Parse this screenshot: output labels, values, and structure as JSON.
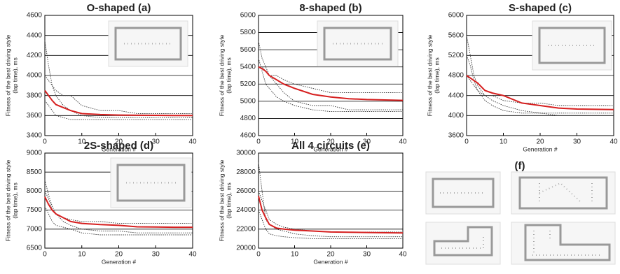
{
  "chart_data": [
    {
      "type": "line",
      "title": "O-shaped (a)",
      "ylabel": [
        "Fitness of the best driving style",
        "(lap time), ms"
      ],
      "xlabel": "Generation #",
      "x": [
        0,
        1,
        2,
        3,
        5,
        7,
        10,
        15,
        20,
        25,
        30,
        35,
        40
      ],
      "xlim": [
        0,
        40
      ],
      "xticks": [
        0,
        10,
        20,
        30,
        40
      ],
      "ylim": [
        3400,
        4600
      ],
      "yticks": [
        3400,
        3600,
        3800,
        4000,
        4200,
        4400,
        4600
      ],
      "grid": true,
      "series": [
        {
          "color": "#333333",
          "style": "dotted",
          "values": [
            4350,
            4100,
            3900,
            3800,
            3700,
            3650,
            3600,
            3580,
            3580,
            3580,
            3580,
            3580,
            3580
          ]
        },
        {
          "color": "#333333",
          "style": "dotted",
          "values": [
            4000,
            3950,
            3900,
            3850,
            3800,
            3800,
            3700,
            3650,
            3650,
            3620,
            3620,
            3620,
            3620
          ]
        },
        {
          "color": "#333333",
          "style": "dotted",
          "values": [
            3750,
            3700,
            3650,
            3600,
            3580,
            3560,
            3560,
            3560,
            3560,
            3560,
            3560,
            3560,
            3560
          ]
        },
        {
          "color": "#d62020",
          "style": "solid",
          "values": [
            3850,
            3800,
            3750,
            3710,
            3680,
            3650,
            3620,
            3610,
            3605,
            3603,
            3602,
            3601,
            3600
          ]
        }
      ]
    },
    {
      "type": "line",
      "title": "8-shaped (b)",
      "ylabel": [
        "Fitness of the best driving style",
        "(lap time), ms"
      ],
      "xlabel": "Generation #",
      "x": [
        0,
        1,
        2,
        3,
        5,
        7,
        10,
        15,
        20,
        25,
        30,
        35,
        40
      ],
      "xlim": [
        0,
        40
      ],
      "xticks": [
        0,
        10,
        20,
        30,
        40
      ],
      "ylim": [
        4600,
        6000
      ],
      "yticks": [
        4600,
        4800,
        5000,
        5200,
        5400,
        5600,
        5800,
        6000
      ],
      "grid": true,
      "series": [
        {
          "color": "#333333",
          "style": "dotted",
          "values": [
            5700,
            5500,
            5400,
            5300,
            5200,
            5100,
            5000,
            4950,
            4950,
            4900,
            4900,
            4900,
            4900
          ]
        },
        {
          "color": "#333333",
          "style": "dotted",
          "values": [
            5400,
            5400,
            5350,
            5300,
            5300,
            5250,
            5200,
            5150,
            5100,
            5100,
            5100,
            5100,
            5100
          ]
        },
        {
          "color": "#333333",
          "style": "dotted",
          "values": [
            5500,
            5350,
            5200,
            5150,
            5050,
            5000,
            4950,
            4900,
            4880,
            4880,
            4880,
            4880,
            4880
          ]
        },
        {
          "color": "#d62020",
          "style": "solid",
          "values": [
            5400,
            5380,
            5350,
            5300,
            5250,
            5200,
            5150,
            5080,
            5050,
            5030,
            5020,
            5015,
            5010
          ]
        }
      ]
    },
    {
      "type": "line",
      "title": "S-shaped (c)",
      "ylabel": [
        "Fitness of the best driving style",
        "(lap time), ms"
      ],
      "xlabel": "Generation #",
      "x": [
        0,
        1,
        2,
        3,
        5,
        7,
        10,
        15,
        20,
        25,
        30,
        35,
        40
      ],
      "xlim": [
        0,
        40
      ],
      "xticks": [
        0,
        10,
        20,
        30,
        40
      ],
      "ylim": [
        3600,
        6000
      ],
      "yticks": [
        3600,
        4000,
        4400,
        4800,
        5200,
        5600,
        6000
      ],
      "grid": true,
      "series": [
        {
          "color": "#333333",
          "style": "dotted",
          "values": [
            5600,
            5200,
            4800,
            4600,
            4400,
            4300,
            4200,
            4100,
            4050,
            4000,
            4000,
            4000,
            4000
          ]
        },
        {
          "color": "#333333",
          "style": "dotted",
          "values": [
            4800,
            4700,
            4600,
            4500,
            4400,
            4400,
            4300,
            4250,
            4250,
            4200,
            4200,
            4200,
            4200
          ]
        },
        {
          "color": "#333333",
          "style": "dotted",
          "values": [
            5200,
            5000,
            4700,
            4500,
            4300,
            4200,
            4100,
            4050,
            4050,
            4050,
            4050,
            4050,
            4050
          ]
        },
        {
          "color": "#d62020",
          "style": "solid",
          "values": [
            4800,
            4750,
            4700,
            4650,
            4500,
            4450,
            4400,
            4250,
            4200,
            4150,
            4130,
            4125,
            4120
          ]
        }
      ]
    },
    {
      "type": "line",
      "title": "2S-shaped (d)",
      "ylabel": [
        "Fitness of the best driving style",
        "(lap time), ms"
      ],
      "xlabel": "Generation #",
      "x": [
        0,
        1,
        2,
        3,
        5,
        7,
        10,
        15,
        20,
        25,
        30,
        35,
        40
      ],
      "xlim": [
        0,
        40
      ],
      "xticks": [
        0,
        10,
        20,
        30,
        40
      ],
      "ylim": [
        6500,
        9000
      ],
      "yticks": [
        6500,
        7000,
        7500,
        8000,
        8500,
        9000
      ],
      "grid": true,
      "series": [
        {
          "color": "#333333",
          "style": "dotted",
          "values": [
            8300,
            7900,
            7600,
            7400,
            7200,
            7100,
            7000,
            6950,
            6950,
            6900,
            6900,
            6900,
            6900
          ]
        },
        {
          "color": "#333333",
          "style": "dotted",
          "values": [
            8000,
            7800,
            7500,
            7400,
            7300,
            7250,
            7200,
            7200,
            7150,
            7150,
            7150,
            7150,
            7150
          ]
        },
        {
          "color": "#333333",
          "style": "dotted",
          "values": [
            7600,
            7400,
            7200,
            7100,
            7050,
            7000,
            6900,
            6850,
            6850,
            6850,
            6850,
            6850,
            6850
          ]
        },
        {
          "color": "#d62020",
          "style": "solid",
          "values": [
            7850,
            7650,
            7500,
            7400,
            7300,
            7200,
            7150,
            7120,
            7100,
            7060,
            7055,
            7050,
            7050
          ]
        }
      ]
    },
    {
      "type": "line",
      "title": "All 4 circuits (e)",
      "ylabel": [
        "Fitness of the best driving style",
        "(lap time), ms"
      ],
      "xlabel": "Generation #",
      "x": [
        0,
        1,
        2,
        3,
        5,
        7,
        10,
        15,
        20,
        25,
        30,
        35,
        40
      ],
      "xlim": [
        0,
        40
      ],
      "xticks": [
        0,
        10,
        20,
        30,
        40
      ],
      "ylim": [
        20000,
        30000
      ],
      "yticks": [
        20000,
        22000,
        24000,
        26000,
        28000,
        30000
      ],
      "grid": true,
      "series": [
        {
          "color": "#333333",
          "style": "dotted",
          "values": [
            29000,
            26000,
            23000,
            22500,
            22000,
            21800,
            21500,
            21300,
            21200,
            21200,
            21200,
            21200,
            21200
          ]
        },
        {
          "color": "#333333",
          "style": "dotted",
          "values": [
            26000,
            25000,
            24000,
            23000,
            22500,
            22200,
            22000,
            21800,
            21700,
            21700,
            21700,
            21700,
            21700
          ]
        },
        {
          "color": "#333333",
          "style": "dotted",
          "values": [
            24000,
            23000,
            22000,
            21500,
            21300,
            21200,
            21100,
            21000,
            21000,
            21000,
            21000,
            21000,
            21000
          ]
        },
        {
          "color": "#d62020",
          "style": "solid",
          "values": [
            25500,
            24000,
            23200,
            22500,
            22100,
            22000,
            21900,
            21800,
            21700,
            21680,
            21650,
            21620,
            21600
          ]
        }
      ]
    }
  ],
  "panel_f_label": "(f)"
}
